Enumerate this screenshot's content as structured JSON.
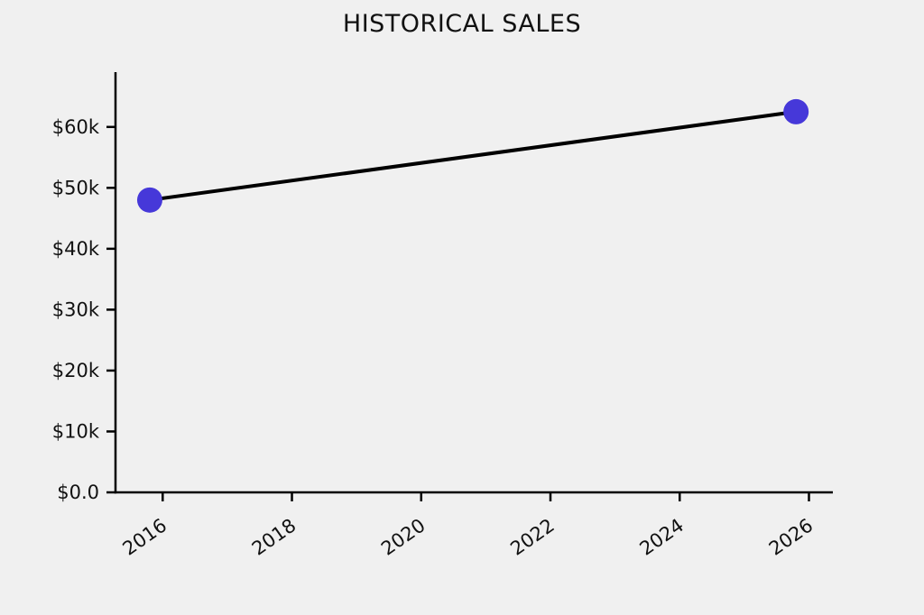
{
  "chart_data": {
    "type": "line",
    "title": "HISTORICAL SALES",
    "xlabel": "",
    "ylabel": "",
    "series": [
      {
        "name": "historical-sales",
        "x": [
          2015.8,
          2025.8
        ],
        "values": [
          48000,
          62500
        ]
      }
    ],
    "x_ticks": {
      "values": [
        2016,
        2018,
        2020,
        2022,
        2024,
        2026
      ],
      "labels": [
        "2016",
        "2018",
        "2020",
        "2022",
        "2024",
        "2026"
      ],
      "rotation_deg": -35
    },
    "y_ticks": {
      "values": [
        0,
        10000,
        20000,
        30000,
        40000,
        50000,
        60000
      ],
      "labels": [
        "$0.0",
        "$10k",
        "$20k",
        "$30k",
        "$40k",
        "$50k",
        "$60k"
      ]
    },
    "xlim": [
      2015.27,
      2026.37
    ],
    "ylim": [
      0,
      69000
    ],
    "grid": false,
    "legend": "none",
    "colors": {
      "background": "#f0f0f0",
      "line": "#000000",
      "marker": "#4638d9",
      "axis": "#000000",
      "text": "#111111"
    }
  }
}
